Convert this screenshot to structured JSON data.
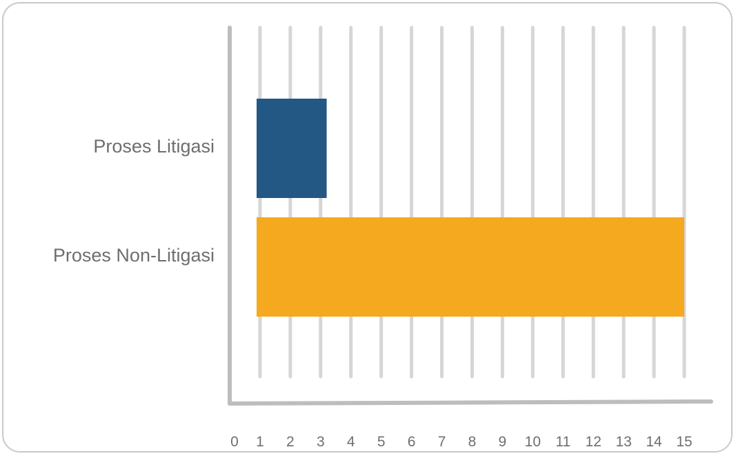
{
  "chart_data": {
    "type": "bar",
    "orientation": "horizontal",
    "title": "",
    "xlabel": "",
    "ylabel": "",
    "categories": [
      "Proses Litigasi",
      "Proses Non-Litigasi"
    ],
    "values": [
      3.2,
      15
    ],
    "bar_colors": [
      "#235784",
      "#f5a91f"
    ],
    "xlim": [
      0,
      15
    ],
    "x_ticks": [
      "0",
      "1",
      "2",
      "3",
      "4",
      "5",
      "6",
      "7",
      "8",
      "9",
      "10",
      "11",
      "12",
      "13",
      "14",
      "15"
    ],
    "grid": true,
    "grid_color": "#d6d6d6",
    "axis_color": "#bdbdbd",
    "legend": "none"
  }
}
